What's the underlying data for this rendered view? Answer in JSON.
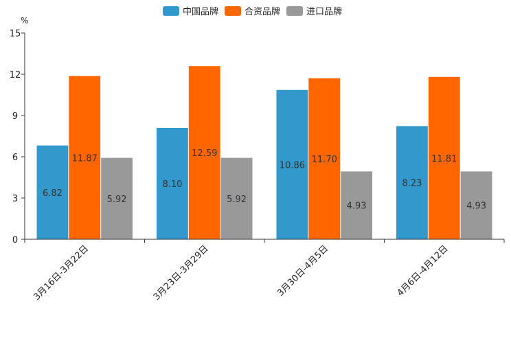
{
  "chart_data": {
    "type": "bar",
    "ylabel": "%",
    "ylim": [
      0,
      15
    ],
    "yticks": [
      0,
      3,
      6,
      9,
      12,
      15
    ],
    "categories": [
      "3月16日-3月22日",
      "3月23日-3月29日",
      "3月30日-4月5日",
      "4月6日-4月12日"
    ],
    "series": [
      {
        "name": "中国品牌",
        "color": "#3399cc",
        "values": [
          6.82,
          8.1,
          10.86,
          8.23
        ],
        "labels": [
          "6.82",
          "8.10",
          "10.86",
          "8.23"
        ]
      },
      {
        "name": "合资品牌",
        "color": "#ff6600",
        "values": [
          11.87,
          12.59,
          11.7,
          11.81
        ],
        "labels": [
          "11.87",
          "12.59",
          "11.70",
          "11.81"
        ]
      },
      {
        "name": "进口品牌",
        "color": "#999999",
        "values": [
          5.92,
          5.92,
          4.93,
          4.93
        ],
        "labels": [
          "5.92",
          "5.92",
          "4.93",
          "4.93"
        ]
      }
    ],
    "legend_position": "top-center",
    "grid": false
  }
}
